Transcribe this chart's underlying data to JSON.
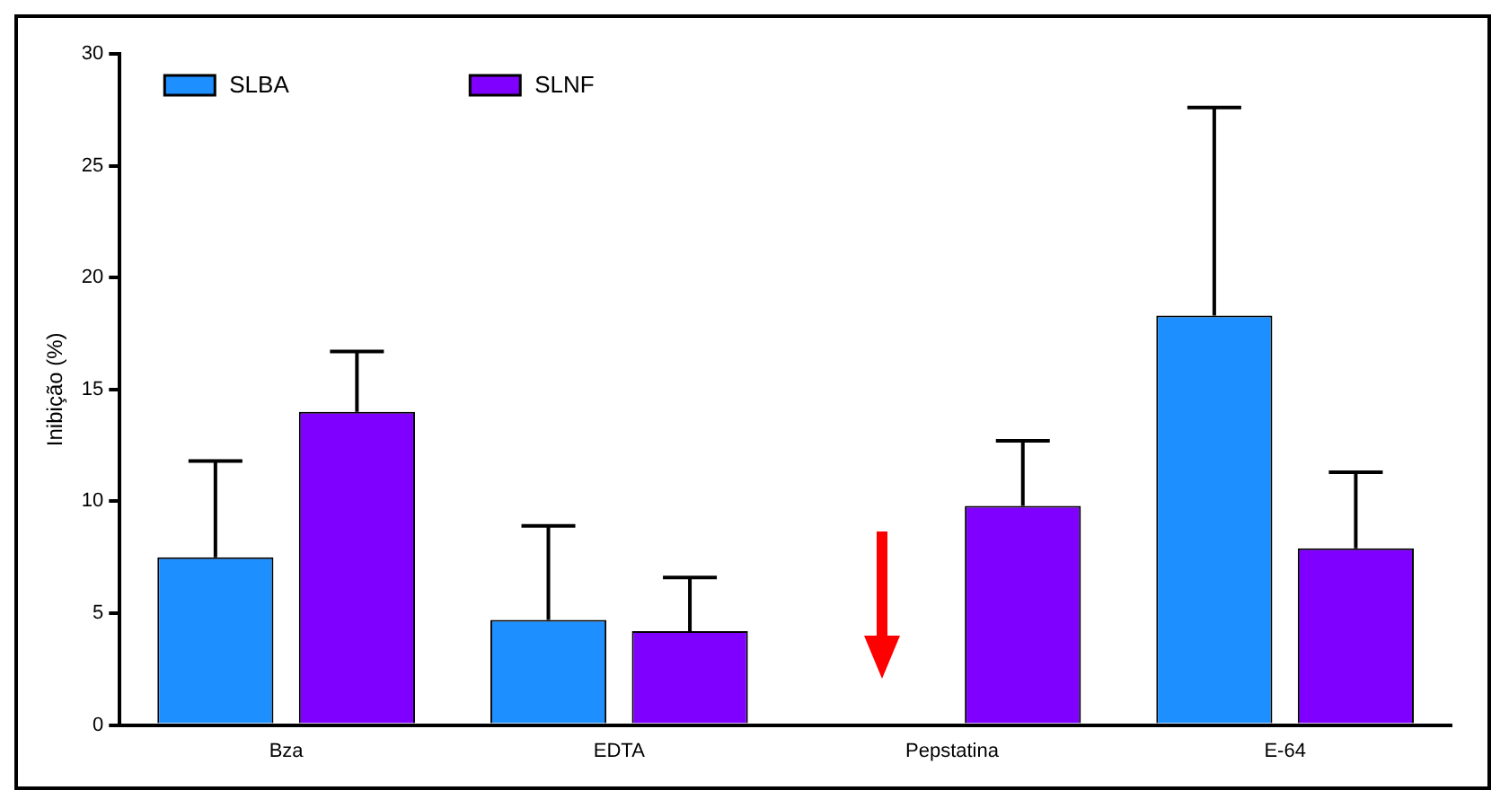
{
  "chart_data": {
    "type": "bar",
    "ylabel": "Inibição (%)",
    "categories": [
      "Bza",
      "EDTA",
      "Pepstatina",
      "E-64"
    ],
    "series": [
      {
        "name": "SLBA",
        "color": "#1e8fff",
        "values": [
          7.5,
          4.7,
          0,
          18.3
        ],
        "errors": [
          [
            7.5,
            11.8
          ],
          [
            4.7,
            8.9
          ],
          null,
          [
            18.3,
            27.6
          ]
        ]
      },
      {
        "name": "SLNF",
        "color": "#8000ff",
        "values": [
          14.0,
          4.2,
          9.8,
          7.9
        ],
        "errors": [
          [
            14.0,
            16.7
          ],
          [
            4.2,
            6.6
          ],
          [
            9.8,
            12.7
          ],
          [
            7.9,
            11.3
          ]
        ]
      }
    ],
    "ylim": [
      0,
      30
    ],
    "yticks": [
      0,
      5,
      10,
      15,
      20,
      25,
      30
    ],
    "grid": false,
    "legend": "top left"
  }
}
